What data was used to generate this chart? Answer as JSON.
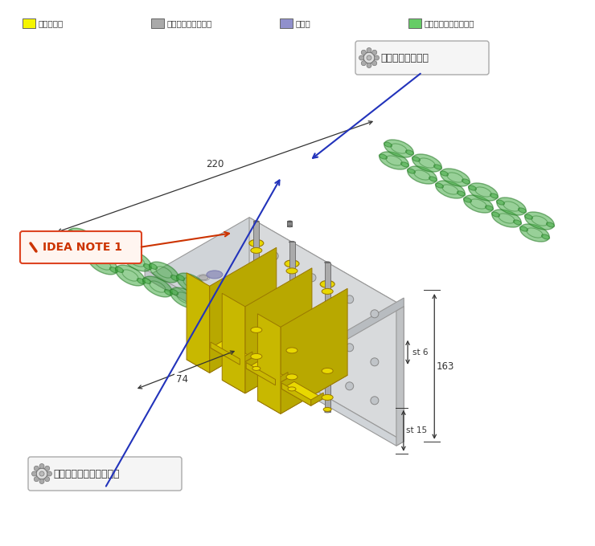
{
  "background_color": "#ffffff",
  "fig_width": 7.4,
  "fig_height": 6.8,
  "dpi": 100,
  "legend_items": [
    {
      "color": "#f5f500",
      "label": "ミスミ部品"
    },
    {
      "color": "#aaaaaa",
      "label": "他社購入品・製作品"
    },
    {
      "color": "#9090cc",
      "label": "ワーク"
    },
    {
      "color": "#66cc66",
      "label": "他想設備・干渉物など"
    }
  ],
  "callout1_text": "小型平行チャック",
  "callout2_text": "位置決めピン用ブッシュ",
  "callout3_text": "IDEA NOTE 1",
  "dim_74": "74",
  "dim_220": "220",
  "dim_163": "163",
  "dim_st15": "st 15",
  "dim_st6": "st 6",
  "plate_top_color": "#d0d4d8",
  "plate_right_color": "#b8bcc0",
  "plate_front_color": "#c4c8cc",
  "wall_face_color": "#d8dadc",
  "wall_right_color": "#c0c2c4",
  "yellow": "#e8d800",
  "yellow_dark": "#b8a800",
  "yellow_side": "#c8b800",
  "gray_metal": "#909090",
  "gray_dark": "#606060",
  "blue_work": "#9090bb",
  "blue_work_dark": "#7070aa",
  "chain_fill": "#44aa44",
  "chain_edge": "#227722",
  "chain_alpha": 0.55
}
